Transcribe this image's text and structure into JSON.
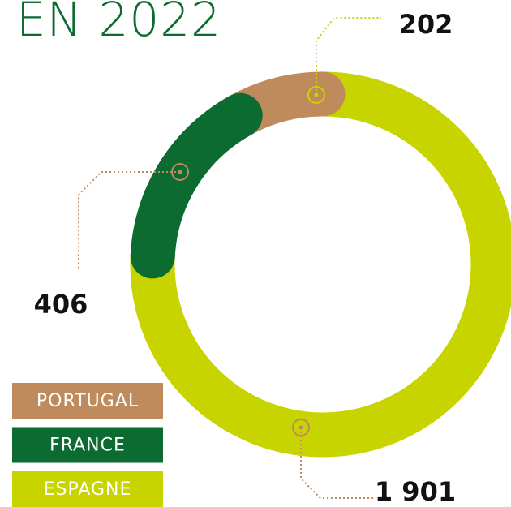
{
  "chart_data": {
    "type": "donut",
    "title": "EN 2022",
    "categories": [
      "PORTUGAL",
      "FRANCE",
      "ESPAGNE"
    ],
    "values": [
      202,
      406,
      1901
    ],
    "value_labels": [
      "202",
      "406",
      "1 901"
    ],
    "colors": [
      "#c08b5c",
      "#0b6b30",
      "#c8d400"
    ]
  }
}
